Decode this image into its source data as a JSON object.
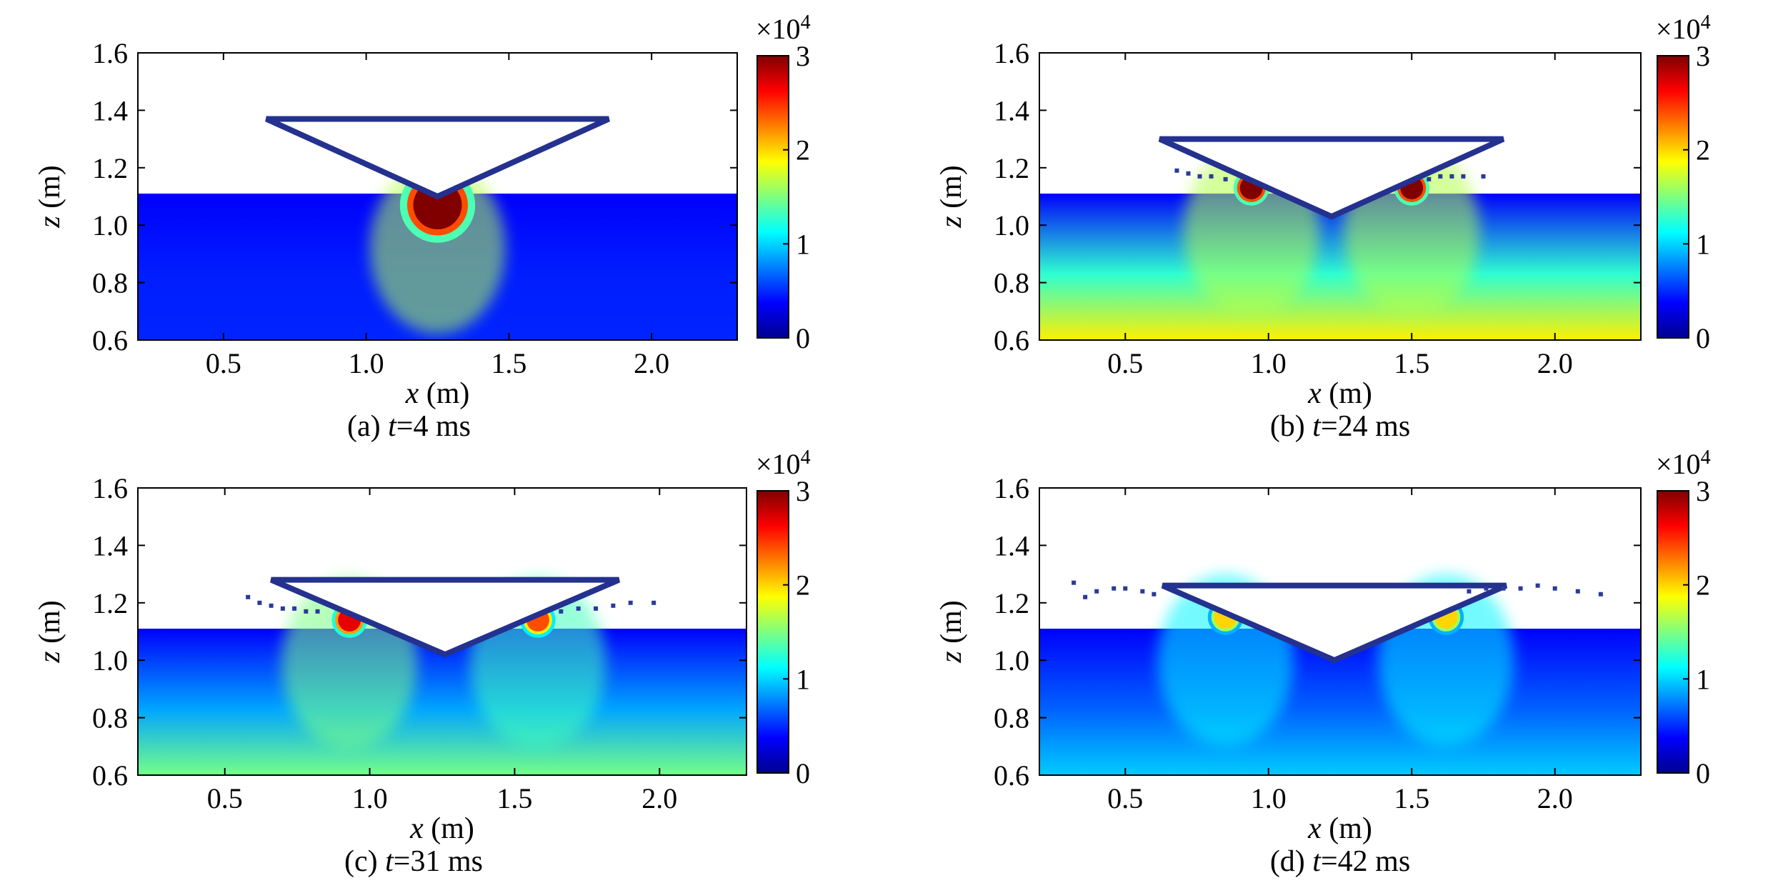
{
  "chart_data": [
    {
      "type": "heatmap",
      "caption": "(a) t=4 ms",
      "caption_prefix": "(a) ",
      "caption_var": "t",
      "caption_suffix": "=4 ms",
      "xlabel_var": "x",
      "xlabel_unit": " (m)",
      "ylabel_var": "z",
      "ylabel_unit": " (m)",
      "xlim": [
        0.2,
        2.3
      ],
      "ylim": [
        0.6,
        1.6
      ],
      "xticks": [
        "0.5",
        "1.0",
        "1.5",
        "2.0"
      ],
      "xtick_values": [
        0.5,
        1.0,
        1.5,
        2.0
      ],
      "yticks": [
        "0.6",
        "0.8",
        "1.0",
        "1.2",
        "1.4",
        "1.6"
      ],
      "ytick_values": [
        0.6,
        0.8,
        1.0,
        1.2,
        1.4,
        1.6
      ],
      "colorbar": {
        "ticks": [
          "0",
          "1",
          "2",
          "3"
        ],
        "tick_values": [
          0,
          1,
          2,
          3
        ],
        "range": [
          0,
          3
        ],
        "multiplier": "×10",
        "exponent": "4"
      },
      "water_surface_z": 1.11,
      "wedge": {
        "left": [
          0.65,
          1.37
        ],
        "right": [
          1.85,
          1.37
        ],
        "apex": [
          1.25,
          1.1
        ]
      },
      "hotspots": [
        {
          "x": 1.25,
          "z": 1.07,
          "value": 3.0
        }
      ],
      "background_level": 0.2,
      "deep_level": 0.2,
      "spray": []
    },
    {
      "type": "heatmap",
      "caption": "(b) t=24 ms",
      "caption_prefix": "(b) ",
      "caption_var": "t",
      "caption_suffix": "=24 ms",
      "xlabel_var": "x",
      "xlabel_unit": " (m)",
      "ylabel_var": "z",
      "ylabel_unit": " (m)",
      "xlim": [
        0.2,
        2.3
      ],
      "ylim": [
        0.6,
        1.6
      ],
      "xticks": [
        "0.5",
        "1.0",
        "1.5",
        "2.0"
      ],
      "xtick_values": [
        0.5,
        1.0,
        1.5,
        2.0
      ],
      "yticks": [
        "0.6",
        "0.8",
        "1.0",
        "1.2",
        "1.4",
        "1.6"
      ],
      "ytick_values": [
        0.6,
        0.8,
        1.0,
        1.2,
        1.4,
        1.6
      ],
      "colorbar": {
        "ticks": [
          "0",
          "1",
          "2",
          "3"
        ],
        "tick_values": [
          0,
          1,
          2,
          3
        ],
        "range": [
          0,
          3
        ],
        "multiplier": "×10",
        "exponent": "4"
      },
      "water_surface_z": 1.11,
      "wedge": {
        "left": [
          0.62,
          1.3
        ],
        "right": [
          1.82,
          1.3
        ],
        "apex": [
          1.22,
          1.03
        ]
      },
      "hotspots": [
        {
          "x": 0.94,
          "z": 1.13,
          "value": 3.0
        },
        {
          "x": 1.5,
          "z": 1.13,
          "value": 3.0
        }
      ],
      "background_level": 1.2,
      "deep_level": 1.8,
      "spray": [
        [
          0.68,
          1.19
        ],
        [
          0.72,
          1.18
        ],
        [
          0.76,
          1.17
        ],
        [
          0.8,
          1.17
        ],
        [
          0.85,
          1.16
        ],
        [
          1.56,
          1.16
        ],
        [
          1.6,
          1.17
        ],
        [
          1.64,
          1.17
        ],
        [
          1.68,
          1.17
        ],
        [
          1.75,
          1.17
        ]
      ]
    },
    {
      "type": "heatmap",
      "caption": "(c) t=31 ms",
      "caption_prefix": "(c) ",
      "caption_var": "t",
      "caption_suffix": "=31 ms",
      "xlabel_var": "x",
      "xlabel_unit": " (m)",
      "ylabel_var": "z",
      "ylabel_unit": " (m)",
      "xlim": [
        0.2,
        2.3
      ],
      "ylim": [
        0.6,
        1.6
      ],
      "xticks": [
        "0.5",
        "1.0",
        "1.5",
        "2.0"
      ],
      "xtick_values": [
        0.5,
        1.0,
        1.5,
        2.0
      ],
      "yticks": [
        "0.6",
        "0.8",
        "1.0",
        "1.2",
        "1.4",
        "1.6"
      ],
      "ytick_values": [
        0.6,
        0.8,
        1.0,
        1.2,
        1.4,
        1.6
      ],
      "colorbar": {
        "ticks": [
          "0",
          "1",
          "2",
          "3"
        ],
        "tick_values": [
          0,
          1,
          2,
          3
        ],
        "range": [
          0,
          3
        ],
        "multiplier": "×10",
        "exponent": "4"
      },
      "water_surface_z": 1.11,
      "wedge": {
        "left": [
          0.66,
          1.28
        ],
        "right": [
          1.86,
          1.28
        ],
        "apex": [
          1.26,
          1.02
        ]
      },
      "hotspots": [
        {
          "x": 0.93,
          "z": 1.14,
          "value": 2.7
        },
        {
          "x": 1.58,
          "z": 1.14,
          "value": 2.4
        }
      ],
      "background_level": 0.7,
      "deep_level": 1.3,
      "spray": [
        [
          0.58,
          1.22
        ],
        [
          0.62,
          1.2
        ],
        [
          0.66,
          1.19
        ],
        [
          0.7,
          1.18
        ],
        [
          0.74,
          1.18
        ],
        [
          0.78,
          1.17
        ],
        [
          0.82,
          1.17
        ],
        [
          1.66,
          1.17
        ],
        [
          1.72,
          1.18
        ],
        [
          1.78,
          1.18
        ],
        [
          1.84,
          1.19
        ],
        [
          1.9,
          1.2
        ],
        [
          1.98,
          1.2
        ]
      ]
    },
    {
      "type": "heatmap",
      "caption": "(d) t=42 ms",
      "caption_prefix": "(d) ",
      "caption_var": "t",
      "caption_suffix": "=42 ms",
      "xlabel_var": "x",
      "xlabel_unit": " (m)",
      "ylabel_var": "z",
      "ylabel_unit": " (m)",
      "xlim": [
        0.2,
        2.3
      ],
      "ylim": [
        0.6,
        1.6
      ],
      "xticks": [
        "0.5",
        "1.0",
        "1.5",
        "2.0"
      ],
      "xtick_values": [
        0.5,
        1.0,
        1.5,
        2.0
      ],
      "yticks": [
        "0.6",
        "0.8",
        "1.0",
        "1.2",
        "1.4",
        "1.6"
      ],
      "ytick_values": [
        0.6,
        0.8,
        1.0,
        1.2,
        1.4,
        1.6
      ],
      "colorbar": {
        "ticks": [
          "0",
          "1",
          "2",
          "3"
        ],
        "tick_values": [
          0,
          1,
          2,
          3
        ],
        "range": [
          0,
          3
        ],
        "multiplier": "×10",
        "exponent": "4"
      },
      "water_surface_z": 1.11,
      "wedge": {
        "left": [
          0.63,
          1.26
        ],
        "right": [
          1.83,
          1.26
        ],
        "apex": [
          1.23,
          1.0
        ]
      },
      "hotspots": [
        {
          "x": 0.85,
          "z": 1.15,
          "value": 2.0
        },
        {
          "x": 1.62,
          "z": 1.15,
          "value": 2.0
        }
      ],
      "background_level": 0.45,
      "deep_level": 0.75,
      "spray": [
        [
          0.32,
          1.27
        ],
        [
          0.36,
          1.22
        ],
        [
          0.4,
          1.24
        ],
        [
          0.46,
          1.25
        ],
        [
          0.5,
          1.25
        ],
        [
          0.56,
          1.24
        ],
        [
          0.6,
          1.23
        ],
        [
          1.7,
          1.24
        ],
        [
          1.76,
          1.25
        ],
        [
          1.82,
          1.25
        ],
        [
          1.88,
          1.25
        ],
        [
          1.94,
          1.26
        ],
        [
          2.0,
          1.25
        ],
        [
          2.08,
          1.24
        ],
        [
          2.16,
          1.23
        ]
      ]
    }
  ]
}
